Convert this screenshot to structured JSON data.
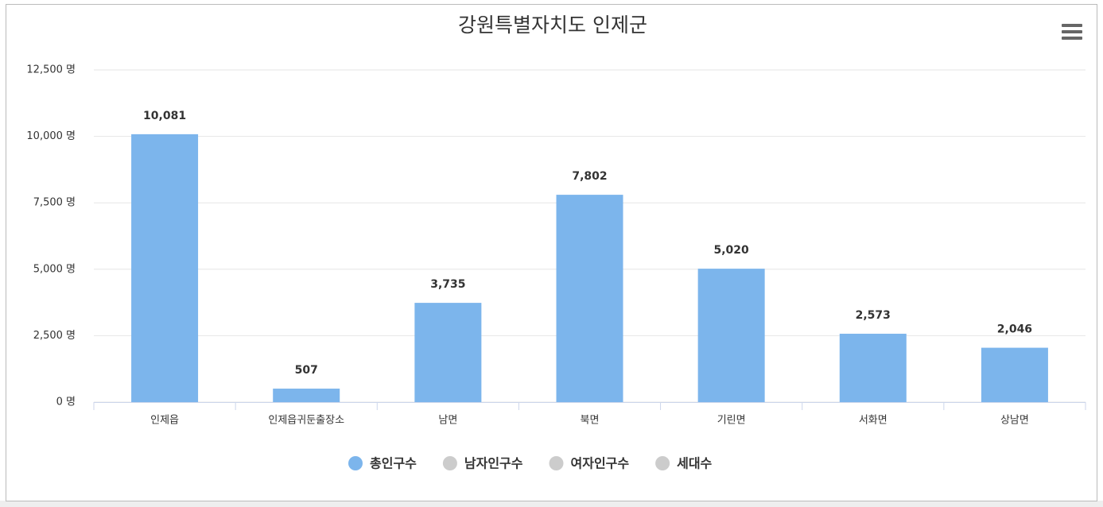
{
  "chart_data": {
    "type": "bar",
    "title": "강원특별자치도 인제군",
    "categories": [
      "인제읍",
      "인제읍귀둔출장소",
      "남면",
      "북면",
      "기린면",
      "서화면",
      "상남면"
    ],
    "series": [
      {
        "name": "총인구수",
        "color": "#7cb5ec",
        "values": [
          10081,
          507,
          3735,
          7802,
          5020,
          2573,
          2046
        ],
        "value_labels": [
          "10,081",
          "507",
          "3,735",
          "7,802",
          "5,020",
          "2,573",
          "2,046"
        ],
        "visible": true
      },
      {
        "name": "남자인구수",
        "color": "#cccccc",
        "visible": false
      },
      {
        "name": "여자인구수",
        "color": "#cccccc",
        "visible": false
      },
      {
        "name": "세대수",
        "color": "#cccccc",
        "visible": false
      }
    ],
    "ylim": [
      0,
      12500
    ],
    "yticks": [
      {
        "value": 0,
        "label": "0 명"
      },
      {
        "value": 2500,
        "label": "2,500 명"
      },
      {
        "value": 5000,
        "label": "5,000 명"
      },
      {
        "value": 7500,
        "label": "7,500 명"
      },
      {
        "value": 10000,
        "label": "10,000 명"
      },
      {
        "value": 12500,
        "label": "12,500 명"
      }
    ],
    "grid": true,
    "legend": "bottom"
  }
}
